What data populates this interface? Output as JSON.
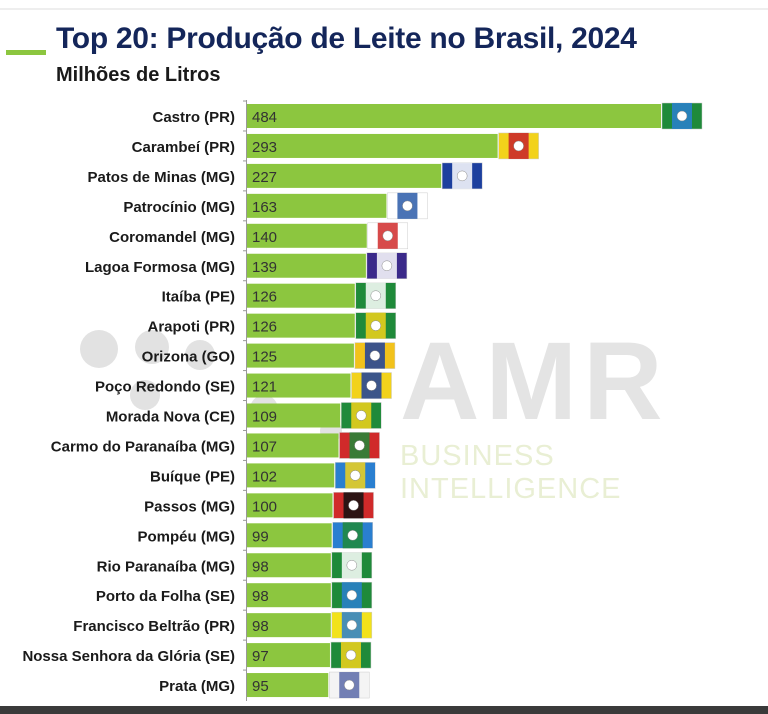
{
  "title": "Top 20: Produção de Leite no Brasil, 2024",
  "subtitle": "Milhões de Litros",
  "watermark": {
    "brand": "AMR",
    "tagline": "BUSINESS INTELLIGENCE"
  },
  "colors": {
    "bar": "#8cc63f",
    "title": "#14265a",
    "accent": "#8cc63f"
  },
  "chart_data": {
    "type": "bar",
    "orientation": "horizontal",
    "title": "Top 20: Produção de Leite no Brasil, 2024",
    "subtitle": "Milhões de Litros",
    "xlabel": "",
    "ylabel": "",
    "xlim": [
      0,
      484
    ],
    "grid": false,
    "categories": [
      "Castro (PR)",
      "Carambeí (PR)",
      "Patos de Minas (MG)",
      "Patrocínio (MG)",
      "Coromandel (MG)",
      "Lagoa Formosa (MG)",
      "Itaíba (PE)",
      "Arapoti (PR)",
      "Orizona (GO)",
      "Poço Redondo (SE)",
      "Morada Nova (CE)",
      "Carmo do Paranaíba (MG)",
      "Buíque (PE)",
      "Passos (MG)",
      "Pompéu (MG)",
      "Rio Paranaíba (MG)",
      "Porto da Folha (SE)",
      "Francisco Beltrão (PR)",
      "Nossa Senhora da Glória (SE)",
      "Prata (MG)"
    ],
    "values": [
      484,
      293,
      227,
      163,
      140,
      139,
      126,
      126,
      125,
      121,
      109,
      107,
      102,
      100,
      99,
      98,
      98,
      98,
      97,
      95
    ],
    "data_labels": [
      "484",
      "293",
      "227",
      "163",
      "140",
      "139",
      "126",
      "126",
      "125",
      "121",
      "109",
      "107",
      "102",
      "100",
      "99",
      "98",
      "98",
      "98",
      "97",
      "95"
    ],
    "flag_colors": [
      [
        "#1f8a3a",
        "#2a7fd0"
      ],
      [
        "#f2d21b",
        "#c8202a"
      ],
      [
        "#1c3f9e",
        "#ffffff"
      ],
      [
        "#ffffff",
        "#2a5aa8"
      ],
      [
        "#ffffff",
        "#d02a2a"
      ],
      [
        "#3b2a8a",
        "#ffffff"
      ],
      [
        "#1f8a3a",
        "#ffffff"
      ],
      [
        "#1f8a3a",
        "#f2d21b"
      ],
      [
        "#f2c21b",
        "#1c3f9e"
      ],
      [
        "#f2d21b",
        "#1c3f9e"
      ],
      [
        "#1f8a3a",
        "#f2d21b"
      ],
      [
        "#d02a2a",
        "#1f8a3a"
      ],
      [
        "#2a7fd0",
        "#f2d21b"
      ],
      [
        "#d02a2a",
        "#111111"
      ],
      [
        "#2a7fd0",
        "#1f8a3a"
      ],
      [
        "#1f8a3a",
        "#ffffff"
      ],
      [
        "#1f8a3a",
        "#2a7fd0"
      ],
      [
        "#f2e21b",
        "#2a7fd0"
      ],
      [
        "#1f8a3a",
        "#f2d21b"
      ],
      [
        "#f4f4f4",
        "#5a6aa8"
      ]
    ]
  }
}
